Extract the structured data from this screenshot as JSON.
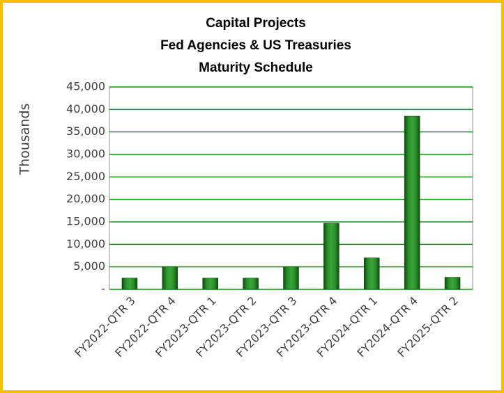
{
  "chart_data": {
    "type": "bar",
    "title": [
      "Capital Projects",
      "Fed Agencies & US Treasuries",
      "Maturity Schedule"
    ],
    "y_label": "Thousands",
    "categories": [
      "FY2022-QTR 3",
      "FY2022-QTR 4",
      "FY2023-QTR 1",
      "FY2023-QTR 2",
      "FY2023-QTR 3",
      "FY2023-QTR 4",
      "FY2024-QTR 1",
      "FY2024-QTR 4",
      "FY2025-QTR 2"
    ],
    "values": [
      2500,
      5000,
      2500,
      2500,
      5000,
      14700,
      7000,
      38500,
      2700
    ],
    "color": "#1e7a1e",
    "ylim": [
      0,
      45000
    ],
    "yticks": [
      {
        "value": 0,
        "label": "-"
      },
      {
        "value": 5000,
        "label": "5,000"
      },
      {
        "value": 10000,
        "label": "10,000"
      },
      {
        "value": 15000,
        "label": "15,000"
      },
      {
        "value": 20000,
        "label": "20,000"
      },
      {
        "value": 25000,
        "label": "25,000"
      },
      {
        "value": 30000,
        "label": "30,000"
      },
      {
        "value": 35000,
        "label": "35,000"
      },
      {
        "value": 40000,
        "label": "40,000"
      },
      {
        "value": 45000,
        "label": "45,000"
      }
    ],
    "grid": true
  }
}
